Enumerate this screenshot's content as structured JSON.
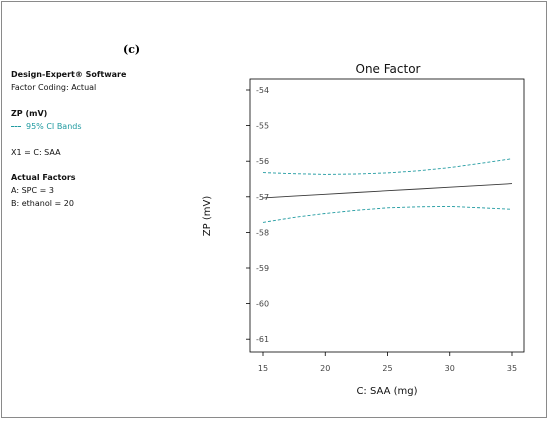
{
  "panel_label": "(c)",
  "sidebar": {
    "software": "Design-Expert® Software",
    "coding": "Factor Coding: Actual",
    "response": "ZP (mV)",
    "ci_label": "95% CI Bands",
    "x1": "X1 = C: SAA",
    "actual_heading": "Actual Factors",
    "factor_a": "A: SPC = 3",
    "factor_b": "B: ethanol = 20"
  },
  "chart_data": {
    "type": "line",
    "title": "One Factor",
    "xlabel": "C: SAA (mg)",
    "ylabel": "ZP (mV)",
    "xlim": [
      15,
      35
    ],
    "ylim": [
      -61.2,
      -53.9
    ],
    "x_ticks": [
      15,
      20,
      25,
      30,
      35
    ],
    "y_ticks": [
      -54,
      -55,
      -56,
      -57,
      -58,
      -59,
      -60,
      -61
    ],
    "grid": false,
    "colors": {
      "prediction": "#3a3a3a",
      "ci": "#1f9aa0"
    },
    "series": [
      {
        "x": [
          15,
          17.5,
          20,
          22.5,
          25,
          27.5,
          30,
          32.5,
          35
        ],
        "y": [
          -57.03,
          -56.98,
          -56.93,
          -56.88,
          -56.83,
          -56.78,
          -56.73,
          -56.68,
          -56.63
        ]
      },
      {
        "x": [
          15,
          17.5,
          20,
          22.5,
          25,
          27.5,
          30,
          32.5,
          35
        ],
        "y": [
          -56.32,
          -56.35,
          -56.37,
          -56.36,
          -56.33,
          -56.27,
          -56.18,
          -56.06,
          -55.93
        ]
      },
      {
        "x": [
          15,
          17.5,
          20,
          22.5,
          25,
          27.5,
          30,
          32.5,
          35
        ],
        "y": [
          -57.72,
          -57.58,
          -57.47,
          -57.38,
          -57.31,
          -57.28,
          -57.27,
          -57.31,
          -57.35
        ]
      }
    ]
  }
}
